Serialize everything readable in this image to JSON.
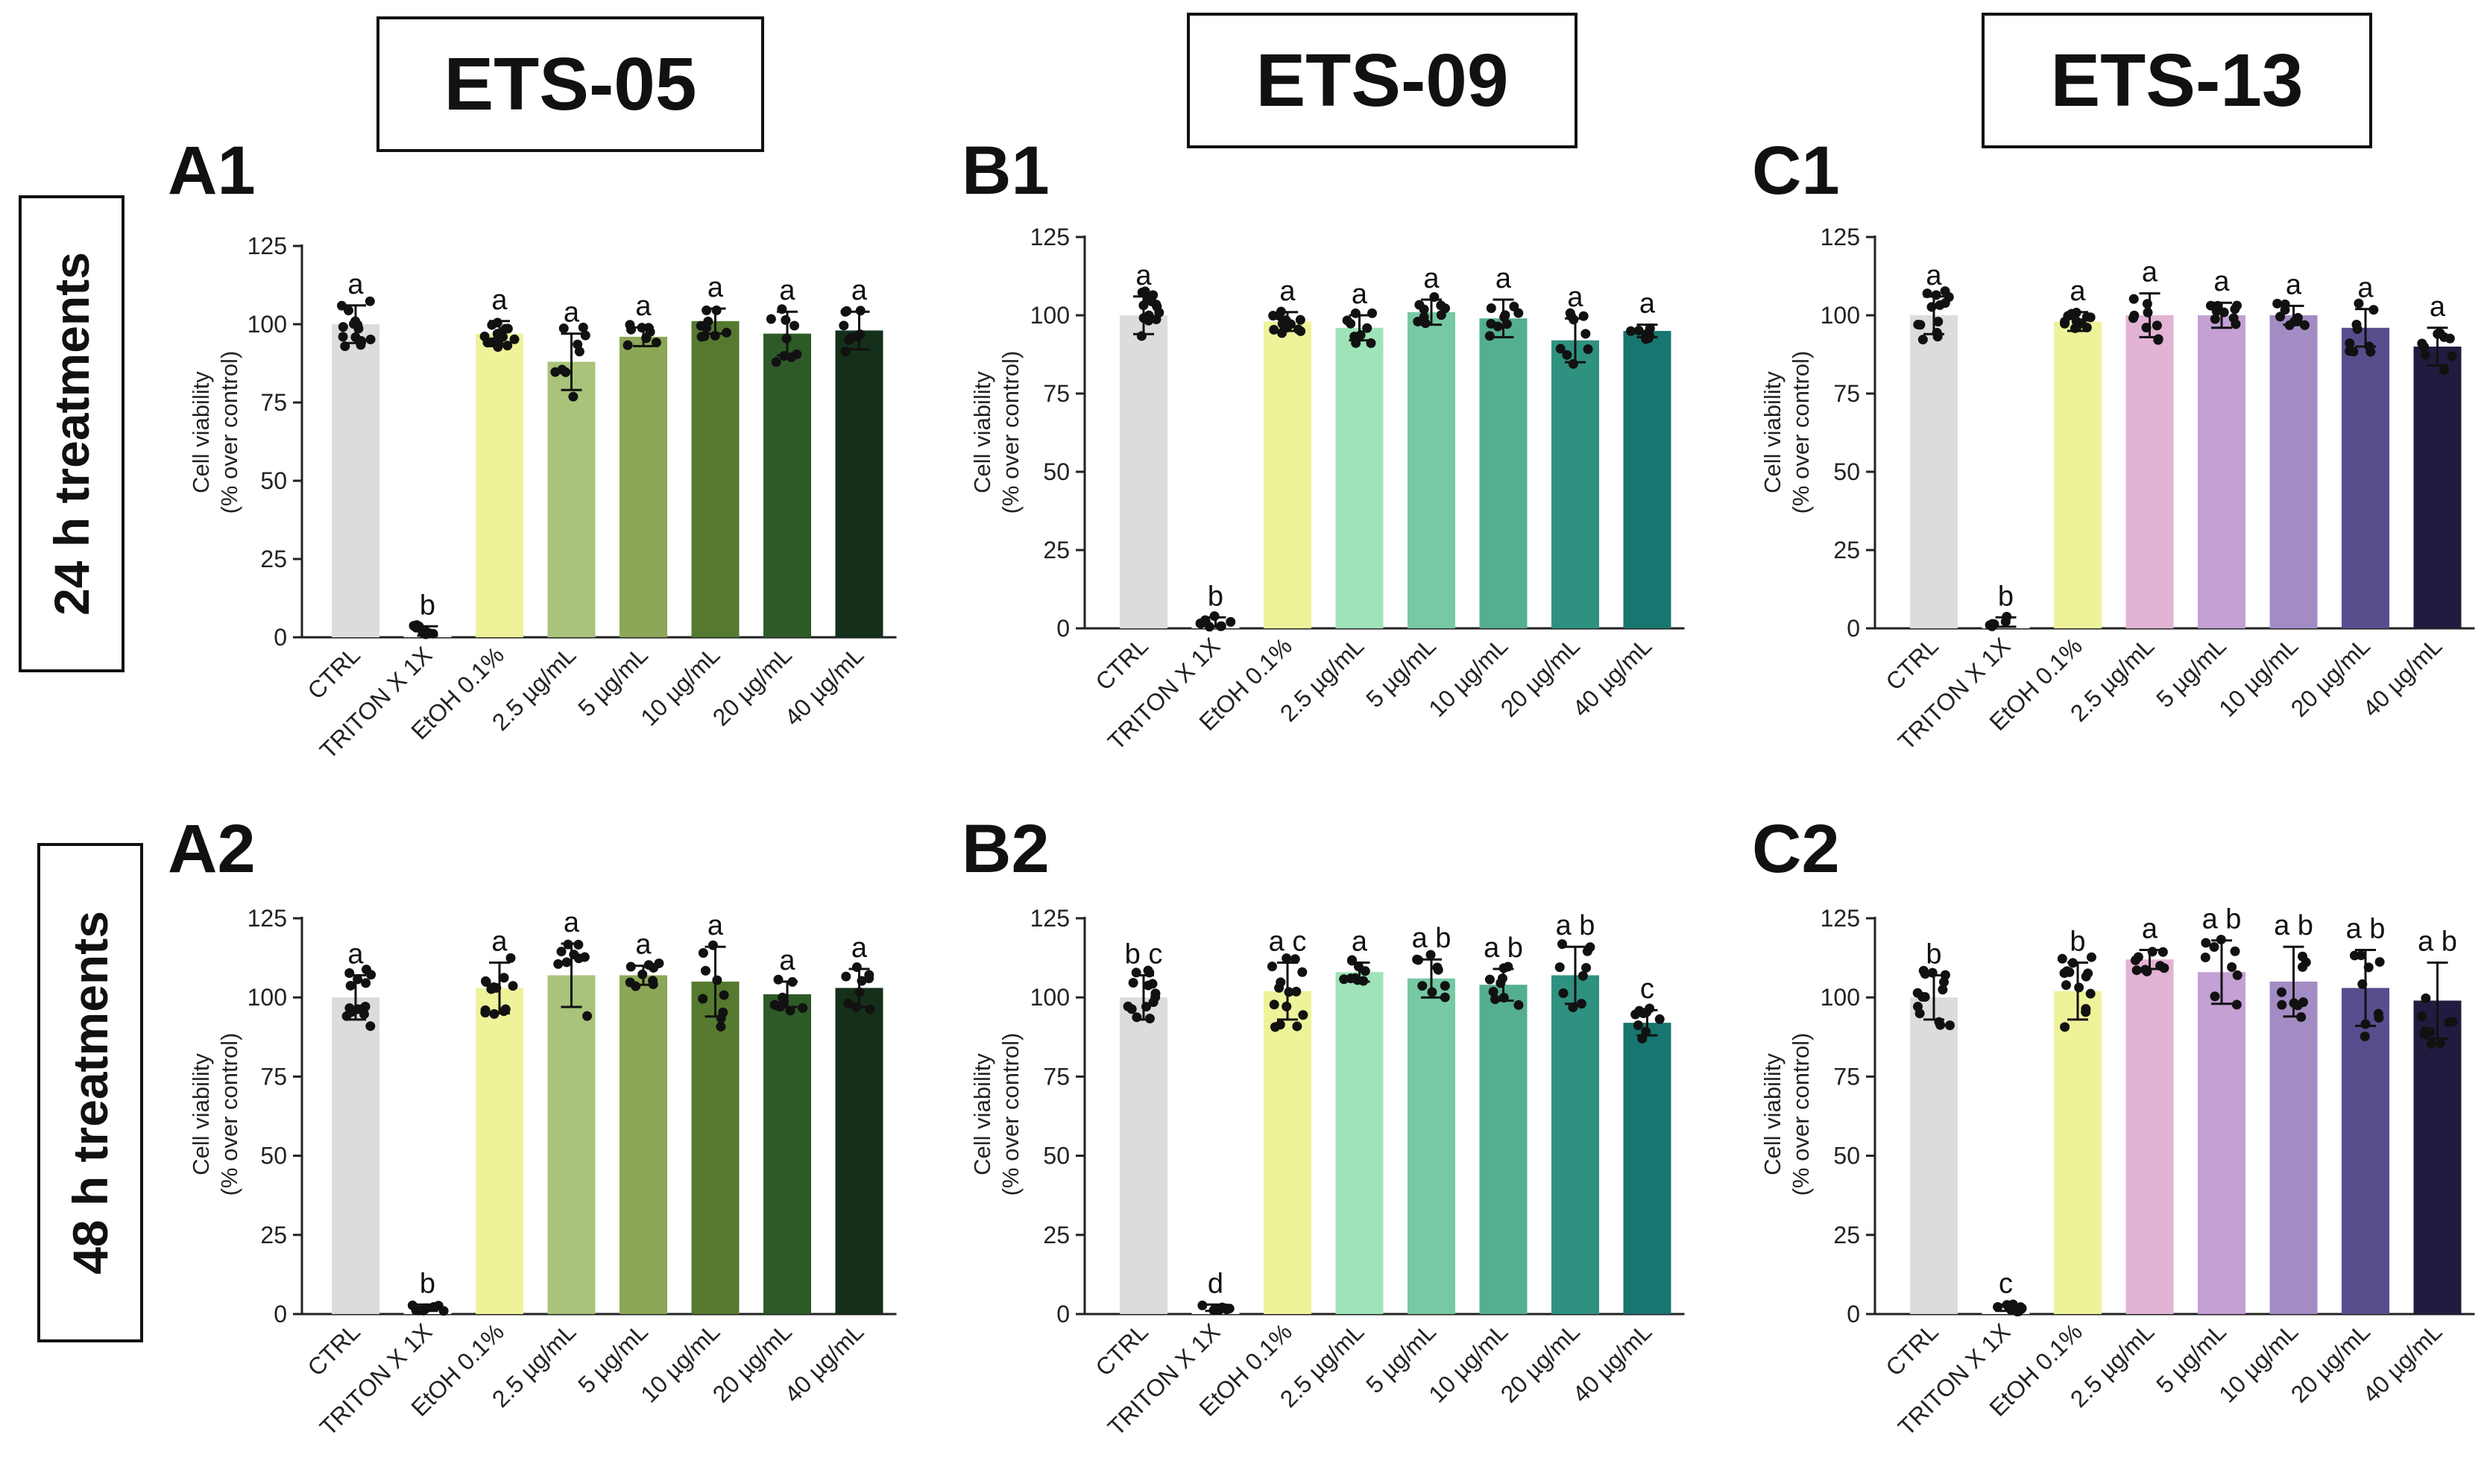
{
  "columns": [
    {
      "title": "ETS-05"
    },
    {
      "title": "ETS-09"
    },
    {
      "title": "ETS-13"
    }
  ],
  "rows": [
    {
      "title": "24 h treatments"
    },
    {
      "title": "48 h treatments"
    }
  ],
  "colors": {
    "ctrl": "#dcdcdd",
    "triton": "#ffffff",
    "ethanol": "#eef39a",
    "ETS-05": [
      "#a9c37a",
      "#8ca757",
      "#557a2f",
      "#2e5a28",
      "#15301a"
    ],
    "ETS-09": [
      "#9fe3b8",
      "#76c9a3",
      "#55ae90",
      "#2f9180",
      "#177670"
    ],
    "ETS-13": [
      "#e2b3d4",
      "#c4a0d4",
      "#a38bc4",
      "#5a4d8e",
      "#231a40"
    ]
  },
  "chart_data": [
    {
      "id": "A1",
      "type": "bar",
      "title": "A1",
      "ylabel": [
        "Cell viability",
        "(% over control)"
      ],
      "ylim": [
        0,
        125
      ],
      "yticks": [
        0,
        25,
        50,
        75,
        100,
        125
      ],
      "categories": [
        "CTRL",
        "TRITON X 1X",
        "EtOH 0.1%",
        "2.5 µg/mL",
        "5 µg/mL",
        "10 µg/mL",
        "20 µg/mL",
        "40 µg/mL"
      ],
      "values": [
        100,
        2,
        97,
        88,
        96,
        101,
        97,
        98
      ],
      "errors": [
        6,
        1.5,
        4,
        9,
        3,
        4,
        7,
        6
      ],
      "letters": [
        "a",
        "b",
        "a",
        "a",
        "a",
        "a",
        "a",
        "a"
      ]
    },
    {
      "id": "B1",
      "type": "bar",
      "title": "B1",
      "ylabel": [
        "Cell viability",
        "(% over control)"
      ],
      "ylim": [
        0,
        125
      ],
      "yticks": [
        0,
        25,
        50,
        75,
        100,
        125
      ],
      "categories": [
        "CTRL",
        "TRITON X 1X",
        "EtOH 0.1%",
        "2.5 µg/mL",
        "5 µg/mL",
        "10 µg/mL",
        "20 µg/mL",
        "40 µg/mL"
      ],
      "values": [
        100,
        2,
        98,
        96,
        101,
        99,
        92,
        95
      ],
      "errors": [
        6,
        1.5,
        3,
        4,
        4,
        6,
        7,
        2
      ],
      "letters": [
        "a",
        "b",
        "a",
        "a",
        "a",
        "a",
        "a",
        "a"
      ]
    },
    {
      "id": "C1",
      "type": "bar",
      "title": "C1",
      "ylabel": [
        "Cell viability",
        "(% over control)"
      ],
      "ylim": [
        0,
        125
      ],
      "yticks": [
        0,
        25,
        50,
        75,
        100,
        125
      ],
      "categories": [
        "CTRL",
        "TRITON X 1X",
        "EtOH 0.1%",
        "2.5 µg/mL",
        "5 µg/mL",
        "10 µg/mL",
        "20 µg/mL",
        "40 µg/mL"
      ],
      "values": [
        100,
        2,
        98,
        100,
        100,
        100,
        96,
        90
      ],
      "errors": [
        6,
        1.5,
        3,
        7,
        4,
        3,
        6,
        6
      ],
      "letters": [
        "a",
        "b",
        "a",
        "a",
        "a",
        "a",
        "a",
        "a"
      ]
    },
    {
      "id": "A2",
      "type": "bar",
      "title": "A2",
      "ylabel": [
        "Cell viability",
        "(% over control)"
      ],
      "ylim": [
        0,
        125
      ],
      "yticks": [
        0,
        25,
        50,
        75,
        100,
        125
      ],
      "categories": [
        "CTRL",
        "TRITON X 1X",
        "EtOH 0.1%",
        "2.5 µg/mL",
        "5 µg/mL",
        "10 µg/mL",
        "20 µg/mL",
        "40 µg/mL"
      ],
      "values": [
        100,
        2,
        103,
        107,
        107,
        105,
        101,
        103
      ],
      "errors": [
        7,
        1,
        8,
        10,
        3,
        11,
        4,
        6
      ],
      "letters": [
        "a",
        "b",
        "a",
        "a",
        "a",
        "a",
        "a",
        "a"
      ]
    },
    {
      "id": "B2",
      "type": "bar",
      "title": "B2",
      "ylabel": [
        "Cell viability",
        "(% over control)"
      ],
      "ylim": [
        0,
        125
      ],
      "yticks": [
        0,
        25,
        50,
        75,
        100,
        125
      ],
      "categories": [
        "CTRL",
        "TRITON X 1X",
        "EtOH 0.1%",
        "2.5 µg/mL",
        "5 µg/mL",
        "10 µg/mL",
        "20 µg/mL",
        "40 µg/mL"
      ],
      "values": [
        100,
        2,
        102,
        108,
        106,
        104,
        107,
        92
      ],
      "errors": [
        7,
        1,
        9,
        3,
        6,
        5,
        9,
        4
      ],
      "letters": [
        "b c",
        "d",
        "a c",
        "a",
        "a b",
        "a b",
        "a b",
        "c"
      ]
    },
    {
      "id": "C2",
      "type": "bar",
      "title": "C2",
      "ylabel": [
        "Cell viability",
        "(% over control)"
      ],
      "ylim": [
        0,
        125
      ],
      "yticks": [
        0,
        25,
        50,
        75,
        100,
        125
      ],
      "categories": [
        "CTRL",
        "TRITON X 1X",
        "EtOH 0.1%",
        "2.5 µg/mL",
        "5 µg/mL",
        "10 µg/mL",
        "20 µg/mL",
        "40 µg/mL"
      ],
      "values": [
        100,
        2,
        102,
        112,
        108,
        105,
        103,
        99
      ],
      "errors": [
        7,
        1,
        9,
        3,
        10,
        11,
        12,
        12
      ],
      "letters": [
        "b",
        "c",
        "b",
        "a",
        "a b",
        "a b",
        "a b",
        "a b"
      ]
    }
  ]
}
